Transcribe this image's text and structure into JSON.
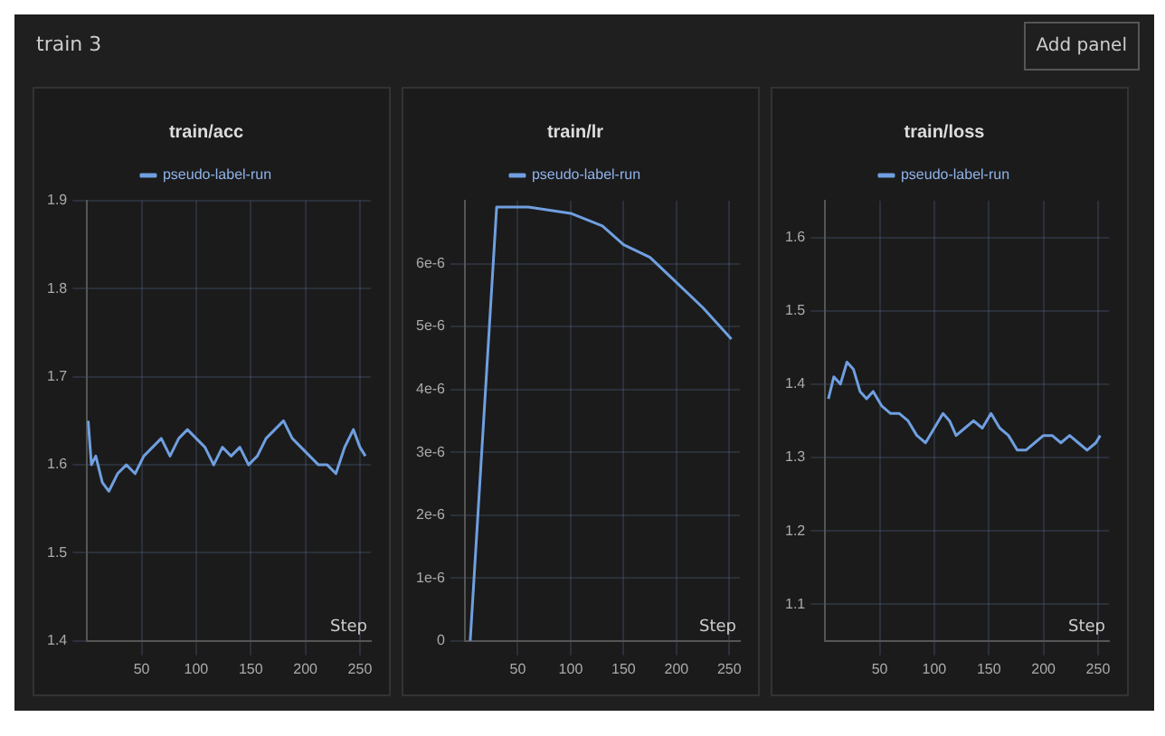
{
  "chart_data": [
    {
      "type": "line",
      "title": "train/acc",
      "xlabel": "Step",
      "annotations": [
        "train 3",
        "Add panel"
      ],
      "legend": "top",
      "grid": true,
      "marker": "none",
      "line_style": "solid",
      "xlim": [
        0,
        260
      ],
      "xticks": [
        50,
        100,
        150,
        200,
        250
      ],
      "ylim": [
        1.4,
        1.9
      ],
      "yticks": [
        1.4,
        1.5,
        1.6,
        1.7,
        1.8,
        1.9
      ],
      "series": [
        {
          "name": "pseudo-label-run",
          "color": "#6f9fe0",
          "x": [
            1,
            4,
            8,
            14,
            20,
            28,
            36,
            44,
            52,
            60,
            68,
            76,
            84,
            92,
            100,
            108,
            116,
            124,
            132,
            140,
            148,
            156,
            164,
            172,
            180,
            188,
            196,
            204,
            212,
            220,
            228,
            236,
            244,
            250,
            255
          ],
          "values": [
            1.65,
            1.6,
            1.61,
            1.58,
            1.57,
            1.59,
            1.6,
            1.59,
            1.61,
            1.62,
            1.63,
            1.61,
            1.63,
            1.64,
            1.63,
            1.62,
            1.6,
            1.62,
            1.61,
            1.62,
            1.6,
            1.61,
            1.63,
            1.64,
            1.65,
            1.63,
            1.62,
            1.61,
            1.6,
            1.6,
            1.59,
            1.62,
            1.64,
            1.62,
            1.61
          ]
        }
      ]
    },
    {
      "type": "line",
      "title": "train/lr",
      "xlabel": "Step",
      "legend": "top",
      "grid": true,
      "marker": "none",
      "line_style": "solid",
      "xlim": [
        0,
        260
      ],
      "xticks": [
        50,
        100,
        150,
        200,
        250
      ],
      "ylim": [
        0,
        7e-06
      ],
      "yticks": [
        0,
        {
          "value": 1e-06,
          "label": "1e-6"
        },
        {
          "value": 2e-06,
          "label": "2e-6"
        },
        {
          "value": 3e-06,
          "label": "3e-6"
        },
        {
          "value": 4e-06,
          "label": "4e-6"
        },
        {
          "value": 5e-06,
          "label": "5e-6"
        },
        {
          "value": 6e-06,
          "label": "6e-6"
        }
      ],
      "series": [
        {
          "name": "pseudo-label-run",
          "color": "#6f9fe0",
          "x": [
            5,
            30,
            60,
            100,
            130,
            150,
            175,
            200,
            225,
            252
          ],
          "values": [
            0,
            6.9e-06,
            6.9e-06,
            6.8e-06,
            6.6e-06,
            6.3e-06,
            6.1e-06,
            5.7e-06,
            5.3e-06,
            4.8e-06
          ]
        }
      ]
    },
    {
      "type": "line",
      "title": "train/loss",
      "xlabel": "Step",
      "legend": "top",
      "grid": true,
      "marker": "none",
      "line_style": "solid",
      "xlim": [
        0,
        260
      ],
      "xticks": [
        50,
        100,
        150,
        200,
        250
      ],
      "ylim": [
        1.05,
        1.65
      ],
      "yticks": [
        1.1,
        1.2,
        1.3,
        1.4,
        1.5,
        1.6
      ],
      "series": [
        {
          "name": "pseudo-label-run",
          "color": "#6f9fe0",
          "x": [
            3,
            8,
            14,
            20,
            26,
            32,
            38,
            44,
            52,
            60,
            68,
            76,
            84,
            92,
            100,
            108,
            114,
            120,
            128,
            136,
            144,
            152,
            160,
            168,
            176,
            184,
            192,
            200,
            208,
            216,
            224,
            232,
            240,
            248,
            252
          ],
          "values": [
            1.38,
            1.41,
            1.4,
            1.43,
            1.42,
            1.39,
            1.38,
            1.39,
            1.37,
            1.36,
            1.36,
            1.35,
            1.33,
            1.32,
            1.34,
            1.36,
            1.35,
            1.33,
            1.34,
            1.35,
            1.34,
            1.36,
            1.34,
            1.33,
            1.31,
            1.31,
            1.32,
            1.33,
            1.33,
            1.32,
            1.33,
            1.32,
            1.31,
            1.32,
            1.33
          ]
        }
      ]
    }
  ]
}
